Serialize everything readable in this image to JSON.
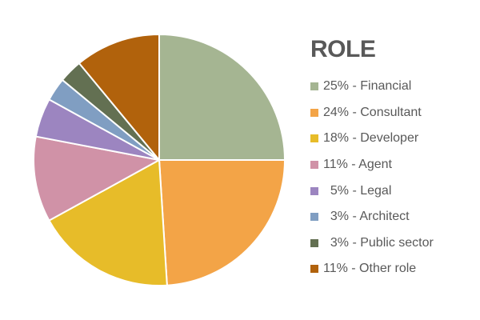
{
  "chart_data": {
    "type": "pie",
    "title": "",
    "legend": {
      "title": "ROLE",
      "position": "right"
    },
    "slices": [
      {
        "label": "25% - Financial",
        "value": 25,
        "color": "#A5B592"
      },
      {
        "label": "24% - Consultant",
        "value": 24,
        "color": "#F3A447"
      },
      {
        "label": "18% - Developer",
        "value": 18,
        "color": "#E7BC29"
      },
      {
        "label": "11% - Agent",
        "value": 11,
        "color": "#D092A7"
      },
      {
        "label": "  5% - Legal",
        "value": 5,
        "color": "#9C85C0"
      },
      {
        "label": "  3% - Architect",
        "value": 3,
        "color": "#809EC2"
      },
      {
        "label": "  3% - Public sector",
        "value": 3,
        "color": "#637052"
      },
      {
        "label": "11% - Other role",
        "value": 11,
        "color": "#B1620C"
      }
    ]
  }
}
